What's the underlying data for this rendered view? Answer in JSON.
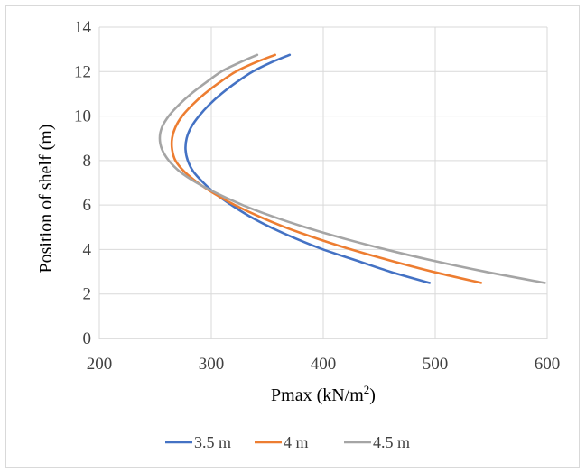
{
  "chart_data": {
    "type": "line",
    "title": "",
    "xlabel": "Pmax (kN/m",
    "xlabel_sup": "2",
    "xlabel_end": ")",
    "ylabel": "Position of shelf (m)",
    "xlim": [
      200,
      600
    ],
    "ylim": [
      0,
      14
    ],
    "xticks": [
      "200",
      "300",
      "400",
      "500",
      "600"
    ],
    "yticks": [
      "0",
      "2",
      "4",
      "6",
      "8",
      "10",
      "12",
      "14"
    ],
    "grid": true,
    "legend_position": "bottom",
    "series": [
      {
        "name": "3.5 m",
        "color": "#4472c4",
        "points": [
          [
            495,
            2.5
          ],
          [
            460,
            3.0
          ],
          [
            430,
            3.5
          ],
          [
            400,
            4.0
          ],
          [
            375,
            4.5
          ],
          [
            353,
            5.0
          ],
          [
            334,
            5.5
          ],
          [
            318,
            6.0
          ],
          [
            304,
            6.5
          ],
          [
            293,
            7.0
          ],
          [
            284,
            7.5
          ],
          [
            279,
            8.0
          ],
          [
            277,
            8.5
          ],
          [
            278,
            9.0
          ],
          [
            282,
            9.5
          ],
          [
            289,
            10.0
          ],
          [
            298,
            10.5
          ],
          [
            309,
            11.0
          ],
          [
            322,
            11.5
          ],
          [
            337,
            12.0
          ],
          [
            353,
            12.4
          ],
          [
            370,
            12.75
          ]
        ]
      },
      {
        "name": "4 m",
        "color": "#ed7d31",
        "points": [
          [
            541,
            2.5
          ],
          [
            498,
            3.0
          ],
          [
            460,
            3.5
          ],
          [
            425,
            4.0
          ],
          [
            394,
            4.5
          ],
          [
            366,
            5.0
          ],
          [
            342,
            5.5
          ],
          [
            321,
            6.0
          ],
          [
            303,
            6.5
          ],
          [
            288,
            7.0
          ],
          [
            276,
            7.5
          ],
          [
            268,
            8.0
          ],
          [
            265,
            8.5
          ],
          [
            265,
            9.0
          ],
          [
            268,
            9.5
          ],
          [
            274,
            10.0
          ],
          [
            283,
            10.5
          ],
          [
            294,
            11.0
          ],
          [
            307,
            11.5
          ],
          [
            322,
            12.0
          ],
          [
            339,
            12.4
          ],
          [
            357,
            12.75
          ]
        ]
      },
      {
        "name": "4.5 m",
        "color": "#a5a5a5",
        "points": [
          [
            598,
            2.5
          ],
          [
            545,
            3.0
          ],
          [
            498,
            3.5
          ],
          [
            456,
            4.0
          ],
          [
            418,
            4.5
          ],
          [
            384,
            5.0
          ],
          [
            354,
            5.5
          ],
          [
            328,
            6.0
          ],
          [
            306,
            6.5
          ],
          [
            287,
            7.0
          ],
          [
            272,
            7.5
          ],
          [
            262,
            8.0
          ],
          [
            256,
            8.5
          ],
          [
            254,
            9.0
          ],
          [
            256,
            9.5
          ],
          [
            262,
            10.0
          ],
          [
            271,
            10.5
          ],
          [
            282,
            11.0
          ],
          [
            295,
            11.5
          ],
          [
            309,
            12.0
          ],
          [
            325,
            12.4
          ],
          [
            341,
            12.75
          ]
        ]
      }
    ]
  }
}
